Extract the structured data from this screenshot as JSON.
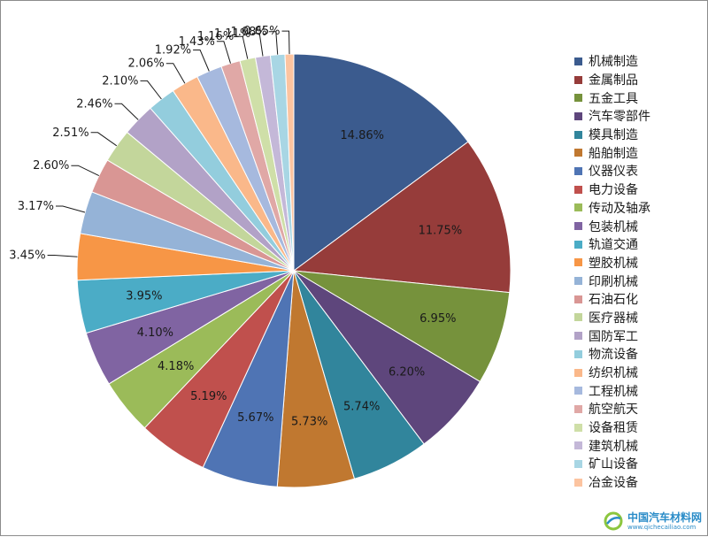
{
  "chart_data": {
    "type": "pie",
    "title": "",
    "legend_position": "right",
    "categories": [
      "机械制造",
      "金属制品",
      "五金工具",
      "汽车零部件",
      "模具制造",
      "船舶制造",
      "仪器仪表",
      "电力设备",
      "传动及轴承",
      "包装机械",
      "轨道交通",
      "塑胶机械",
      "印刷机械",
      "石油石化",
      "医疗器械",
      "国防军工",
      "物流设备",
      "纺织机械",
      "工程机械",
      "航空航天",
      "设备租赁",
      "建筑机械",
      "矿山设备",
      "冶金设备"
    ],
    "values": [
      14.86,
      11.75,
      6.95,
      6.2,
      5.74,
      5.73,
      5.67,
      5.19,
      4.18,
      4.1,
      3.95,
      3.45,
      3.17,
      2.6,
      2.51,
      2.46,
      2.1,
      2.06,
      1.92,
      1.43,
      1.16,
      1.11,
      1.08,
      0.65
    ],
    "labels": [
      "14.86%",
      "11.75%",
      "6.95%",
      "6.20%",
      "5.74%",
      "5.73%",
      "5.67%",
      "5.19%",
      "4.18%",
      "4.10%",
      "3.95%",
      "3.45%",
      "3.17%",
      "2.60%",
      "2.51%",
      "2.46%",
      "2.10%",
      "2.06%",
      "1.92%",
      "1.43%",
      "1.16%",
      "1.11%",
      "1.08%",
      "0.65%"
    ],
    "colors": [
      "#3b5b8e",
      "#963c3a",
      "#76923c",
      "#5e467c",
      "#31859c",
      "#c07830",
      "#4f74b4",
      "#c0504d",
      "#9bbb59",
      "#8064a2",
      "#4bacc6",
      "#f79646",
      "#95b3d7",
      "#d99694",
      "#c3d69b",
      "#b2a2c7",
      "#93cddd",
      "#fab88a",
      "#a6b9de",
      "#e0a8a6",
      "#cfdfa8",
      "#c4b8d8",
      "#a8d6e4",
      "#fcc4a0"
    ]
  },
  "watermark": {
    "title": "中国汽车材料网",
    "url": "www.qichecailiao.com"
  }
}
